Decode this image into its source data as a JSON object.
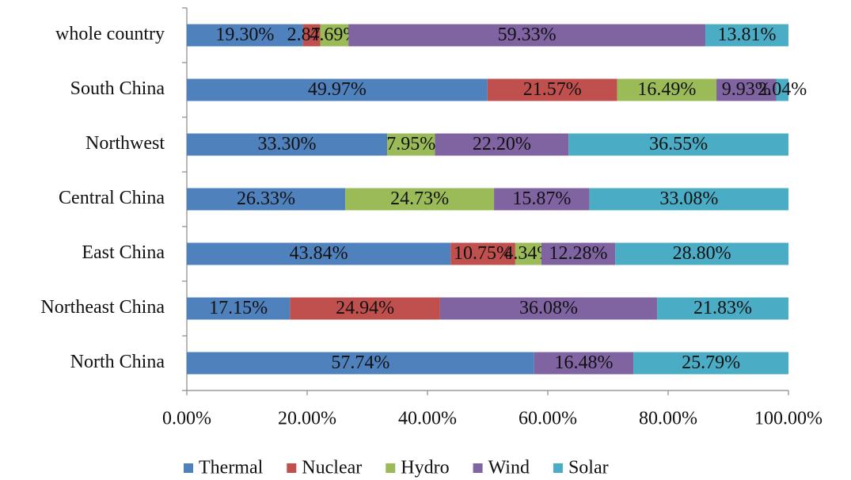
{
  "chart_data": {
    "type": "stacked_bar_horizontal",
    "categories": [
      "whole country",
      "South China",
      "Northwest",
      "Central China",
      "East China",
      "Northeast China",
      "North China"
    ],
    "series": [
      {
        "name": "Thermal",
        "color": "#4f81bd",
        "values": [
          19.3,
          49.97,
          33.3,
          26.33,
          43.84,
          17.15,
          57.74
        ],
        "value_labels": [
          "19.30%",
          "49.97%",
          "33.30%",
          "26.33%",
          "43.84%",
          "17.15%",
          "57.74%"
        ]
      },
      {
        "name": "Nuclear",
        "color": "#c0504d",
        "values": [
          2.87,
          21.57,
          null,
          null,
          10.75,
          24.94,
          null
        ],
        "value_labels": [
          "2.87%",
          "21.57%",
          null,
          null,
          "10.75%",
          "24.94%",
          null
        ]
      },
      {
        "name": "Hydro",
        "color": "#9bbb59",
        "values": [
          4.69,
          16.49,
          7.95,
          24.73,
          4.34,
          null,
          null
        ],
        "value_labels": [
          "4.69%",
          "16.49%",
          "7.95%",
          "24.73%",
          "4.34%",
          null,
          null
        ]
      },
      {
        "name": "Wind",
        "color": "#8064a2",
        "values": [
          59.33,
          9.93,
          22.2,
          15.87,
          12.28,
          36.08,
          16.48
        ],
        "value_labels": [
          "59.33%",
          "9.93%",
          "22.20%",
          "15.87%",
          "12.28%",
          "36.08%",
          "16.48%"
        ]
      },
      {
        "name": "Solar",
        "color": "#4bacc6",
        "values": [
          13.81,
          2.04,
          36.55,
          33.08,
          28.8,
          21.83,
          25.79
        ],
        "value_labels": [
          "13.81%",
          "2.04%",
          "36.55%",
          "33.08%",
          "28.80%",
          "21.83%",
          "25.79%"
        ]
      }
    ],
    "xlim": [
      0,
      100
    ],
    "xticks": [
      {
        "value": 0,
        "label": "0.00%"
      },
      {
        "value": 20,
        "label": "20.00%"
      },
      {
        "value": 40,
        "label": "40.00%"
      },
      {
        "value": 60,
        "label": "60.00%"
      },
      {
        "value": 80,
        "label": "80.00%"
      },
      {
        "value": 100,
        "label": "100.00%"
      }
    ],
    "legend": "bottom"
  }
}
